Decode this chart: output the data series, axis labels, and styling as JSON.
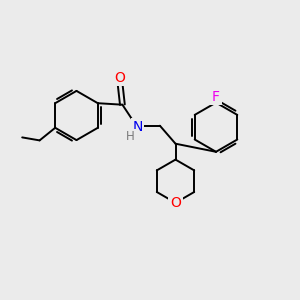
{
  "bg_color": "#ebebeb",
  "atom_colors": {
    "C": "#000000",
    "N": "#0000ee",
    "O": "#ff0000",
    "F": "#ee00ee",
    "H": "#7a7a7a"
  },
  "bond_color": "#000000",
  "bond_width": 1.4,
  "figsize": [
    3.0,
    3.0
  ],
  "dpi": 100,
  "xlim": [
    0,
    10
  ],
  "ylim": [
    0,
    10
  ]
}
